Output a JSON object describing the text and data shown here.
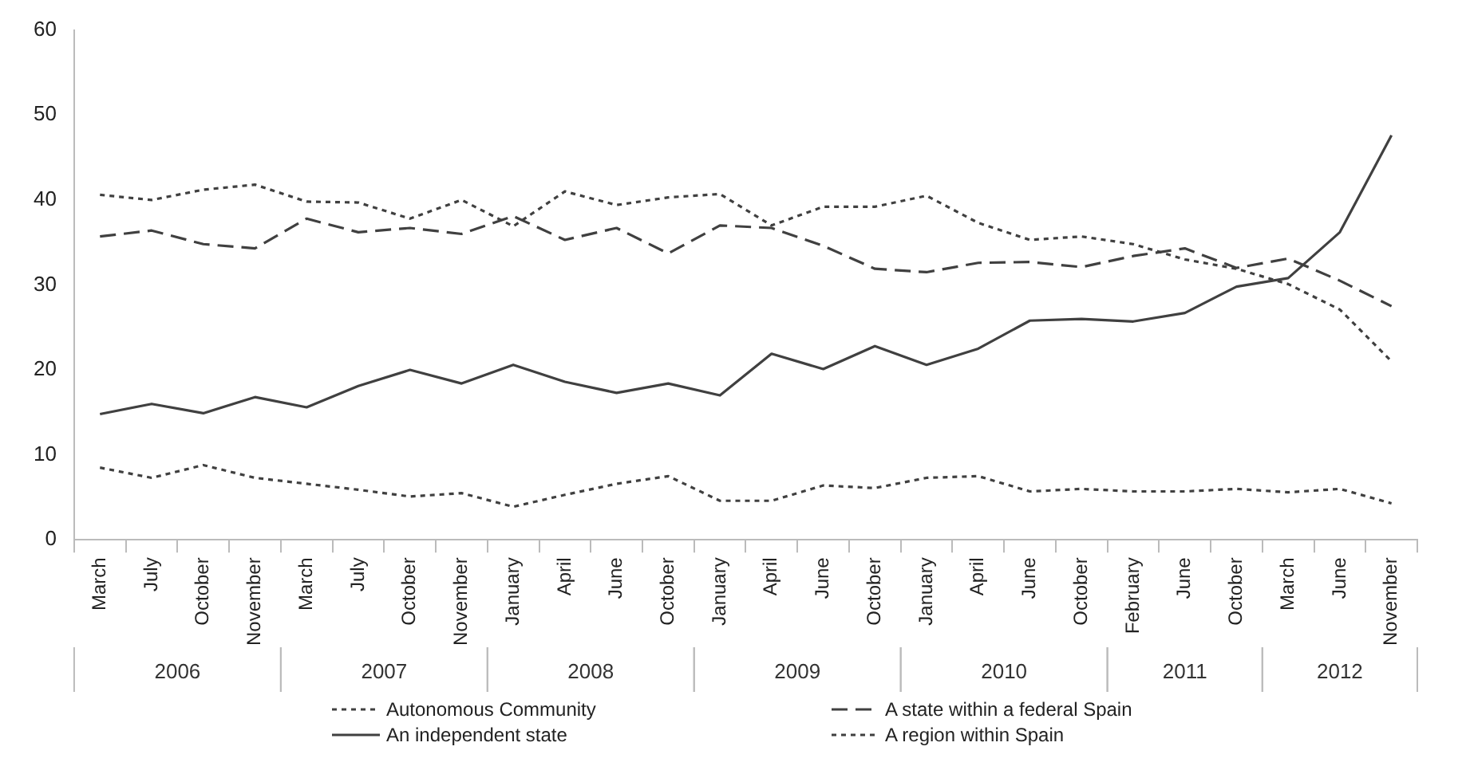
{
  "chart_data": {
    "type": "line",
    "categories": [
      "March",
      "July",
      "October",
      "November",
      "March",
      "July",
      "October",
      "November",
      "January",
      "April",
      "June",
      "October",
      "January",
      "April",
      "June",
      "October",
      "January",
      "April",
      "June",
      "October",
      "February",
      "June",
      "October",
      "March",
      "June",
      "November"
    ],
    "annotations": [
      "2006",
      "2007",
      "2008",
      "2009",
      "2010",
      "2011",
      "2012"
    ],
    "ylim": [
      0,
      60
    ],
    "yticks": [
      0,
      10,
      20,
      30,
      40,
      50,
      60
    ],
    "grid": false,
    "legend": "bottom",
    "marker": "none",
    "series": [
      {
        "name": "Autonomous Community",
        "color": "#404040",
        "line_style": "dotted",
        "values": [
          8.5,
          7.3,
          8.8,
          7.3,
          6.6,
          5.9,
          5.1,
          5.5,
          3.9,
          5.3,
          6.6,
          7.5,
          4.6,
          4.6,
          6.4,
          6.1,
          7.3,
          7.5,
          5.7,
          6.0,
          5.7,
          5.7,
          6.0,
          5.6,
          6.0,
          4.3
        ]
      },
      {
        "name": "A state within a federal Spain",
        "color": "#404040",
        "line_style": "dashed",
        "values": [
          35.7,
          36.4,
          34.8,
          34.3,
          37.8,
          36.2,
          36.7,
          36.0,
          38.1,
          35.3,
          36.7,
          33.7,
          37.0,
          36.7,
          34.6,
          31.9,
          31.5,
          32.6,
          32.7,
          32.1,
          33.4,
          34.3,
          32.0,
          33.1,
          30.5,
          27.5
        ]
      },
      {
        "name": "An independent state",
        "color": "#404040",
        "line_style": "solid",
        "values": [
          14.8,
          16.0,
          14.9,
          16.8,
          15.6,
          18.1,
          20.0,
          18.4,
          20.6,
          18.6,
          17.3,
          18.4,
          17.0,
          21.9,
          20.1,
          22.8,
          20.6,
          22.5,
          25.8,
          26.0,
          25.7,
          26.7,
          29.8,
          30.8,
          36.2,
          47.6
        ]
      },
      {
        "name": "A region within Spain",
        "color": "#404040",
        "line_style": "dotted",
        "values": [
          40.6,
          40.0,
          41.2,
          41.8,
          39.8,
          39.7,
          37.8,
          40.0,
          36.9,
          41.0,
          39.4,
          40.3,
          40.7,
          37.0,
          39.2,
          39.2,
          40.5,
          37.3,
          35.3,
          35.7,
          34.8,
          33.0,
          31.9,
          30.1,
          27.1,
          21.0
        ]
      }
    ]
  }
}
